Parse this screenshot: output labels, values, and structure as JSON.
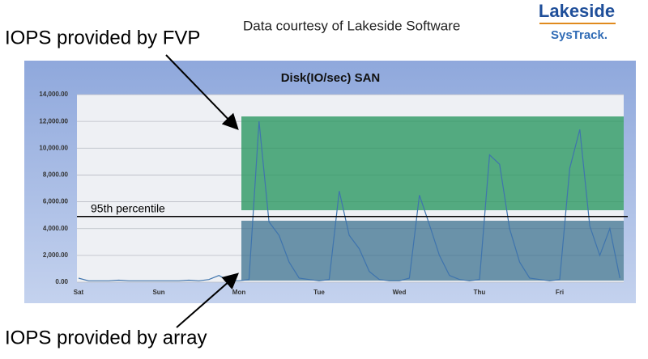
{
  "header": {
    "courtesy": "Data courtesy of Lakeside Software",
    "logo": "Lakeside",
    "logo_sub": "SysTrack."
  },
  "callouts": {
    "top": "IOPS provided by FVP",
    "bottom": "IOPS provided by array"
  },
  "chart_data": {
    "type": "line",
    "title": "Disk(IO/sec) SAN",
    "categories": [
      "Sat",
      null,
      null,
      null,
      null,
      null,
      null,
      null,
      "Sun",
      null,
      null,
      null,
      null,
      null,
      null,
      null,
      "Mon",
      null,
      null,
      null,
      null,
      null,
      null,
      null,
      "Tue",
      null,
      null,
      null,
      null,
      null,
      null,
      null,
      "Wed",
      null,
      null,
      null,
      null,
      null,
      null,
      null,
      "Thu",
      null,
      null,
      null,
      null,
      null,
      null,
      null,
      "Fri",
      null,
      null,
      null,
      null,
      null,
      null
    ],
    "series": [
      {
        "name": "Disk(IO/sec) SAN",
        "color": "#3f74ad",
        "values": [
          300,
          100,
          100,
          100,
          150,
          100,
          100,
          100,
          100,
          100,
          100,
          150,
          100,
          200,
          500,
          100,
          100,
          200,
          12000,
          4500,
          3500,
          1500,
          300,
          200,
          100,
          200,
          6800,
          3500,
          2500,
          800,
          200,
          100,
          100,
          300,
          6500,
          4300,
          2000,
          500,
          200,
          100,
          200,
          9500,
          8800,
          4000,
          1500,
          300,
          200,
          100,
          200,
          8500,
          11400,
          4200,
          2000,
          4000,
          300
        ]
      }
    ],
    "ylim": [
      0,
      14000
    ],
    "yticks": [
      {
        "value": 0,
        "label": "0.00"
      },
      {
        "value": 2000,
        "label": "2,000.00"
      },
      {
        "value": 4000,
        "label": "4,000.00"
      },
      {
        "value": 6000,
        "label": "6,000.00"
      },
      {
        "value": 8000,
        "label": "8,000.00"
      },
      {
        "value": 10000,
        "label": "10,000.00"
      },
      {
        "value": 12000,
        "label": "12,000.00"
      },
      {
        "value": 14000,
        "label": "14,000.00"
      }
    ],
    "grid": true,
    "percentile_line": {
      "label": "95th percentile",
      "value": 4900
    }
  }
}
